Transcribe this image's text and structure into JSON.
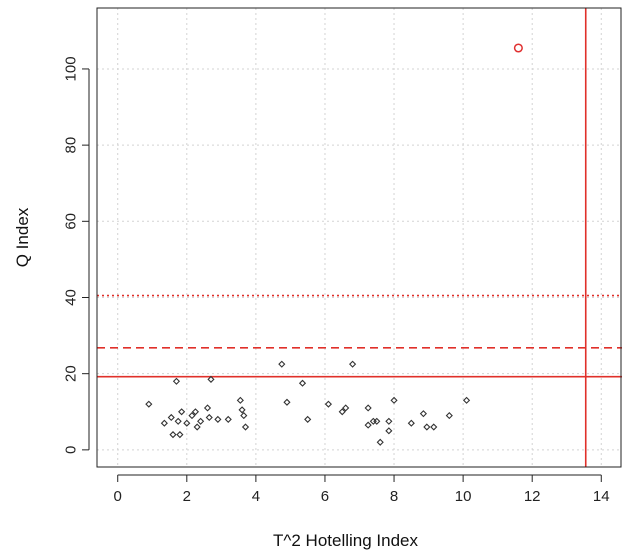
{
  "chart_data": {
    "type": "scatter",
    "xlabel": "T^2 Hotelling Index",
    "ylabel": "Q Index",
    "xlim": [
      -0.6,
      14.6
    ],
    "ylim": [
      -4.5,
      116
    ],
    "x_ticks": [
      0,
      2,
      4,
      6,
      8,
      10,
      12,
      14
    ],
    "y_ticks": [
      0,
      20,
      40,
      60,
      80,
      100
    ],
    "grid": true,
    "series": [
      {
        "marker": "diamond",
        "color": "#333333",
        "points": [
          [
            0.9,
            12
          ],
          [
            1.35,
            7
          ],
          [
            1.55,
            8.5
          ],
          [
            1.6,
            4
          ],
          [
            1.7,
            18
          ],
          [
            1.75,
            7.5
          ],
          [
            1.8,
            4
          ],
          [
            1.85,
            10
          ],
          [
            2.0,
            7
          ],
          [
            2.15,
            9
          ],
          [
            2.25,
            10
          ],
          [
            2.3,
            6
          ],
          [
            2.4,
            7.5
          ],
          [
            2.6,
            11
          ],
          [
            2.65,
            8.5
          ],
          [
            2.7,
            18.5
          ],
          [
            2.9,
            8
          ],
          [
            3.2,
            8
          ],
          [
            3.55,
            13
          ],
          [
            3.6,
            10.5
          ],
          [
            3.65,
            9
          ],
          [
            3.7,
            6
          ],
          [
            4.75,
            22.5
          ],
          [
            4.9,
            12.5
          ],
          [
            5.35,
            17.5
          ],
          [
            5.5,
            8
          ],
          [
            6.1,
            12
          ],
          [
            6.5,
            10
          ],
          [
            6.6,
            11
          ],
          [
            6.8,
            22.5
          ],
          [
            7.25,
            11
          ],
          [
            7.25,
            6.5
          ],
          [
            7.4,
            7.5
          ],
          [
            7.5,
            7.5
          ],
          [
            7.6,
            2
          ],
          [
            7.85,
            7.5
          ],
          [
            7.85,
            5
          ],
          [
            8.0,
            13
          ],
          [
            8.5,
            7
          ],
          [
            8.85,
            9.5
          ],
          [
            8.95,
            6
          ],
          [
            9.15,
            6
          ],
          [
            9.6,
            9
          ],
          [
            10.1,
            13
          ]
        ]
      },
      {
        "marker": "circle",
        "color": "#e03030",
        "points": [
          [
            11.6,
            105.5
          ]
        ]
      }
    ],
    "limits": {
      "color": "#e0302a",
      "vertical_x": 13.55,
      "horizontal": [
        {
          "y": 19.2,
          "style": "solid"
        },
        {
          "y": 26.8,
          "style": "dashed"
        },
        {
          "y": 40.5,
          "style": "dotted"
        }
      ]
    }
  }
}
